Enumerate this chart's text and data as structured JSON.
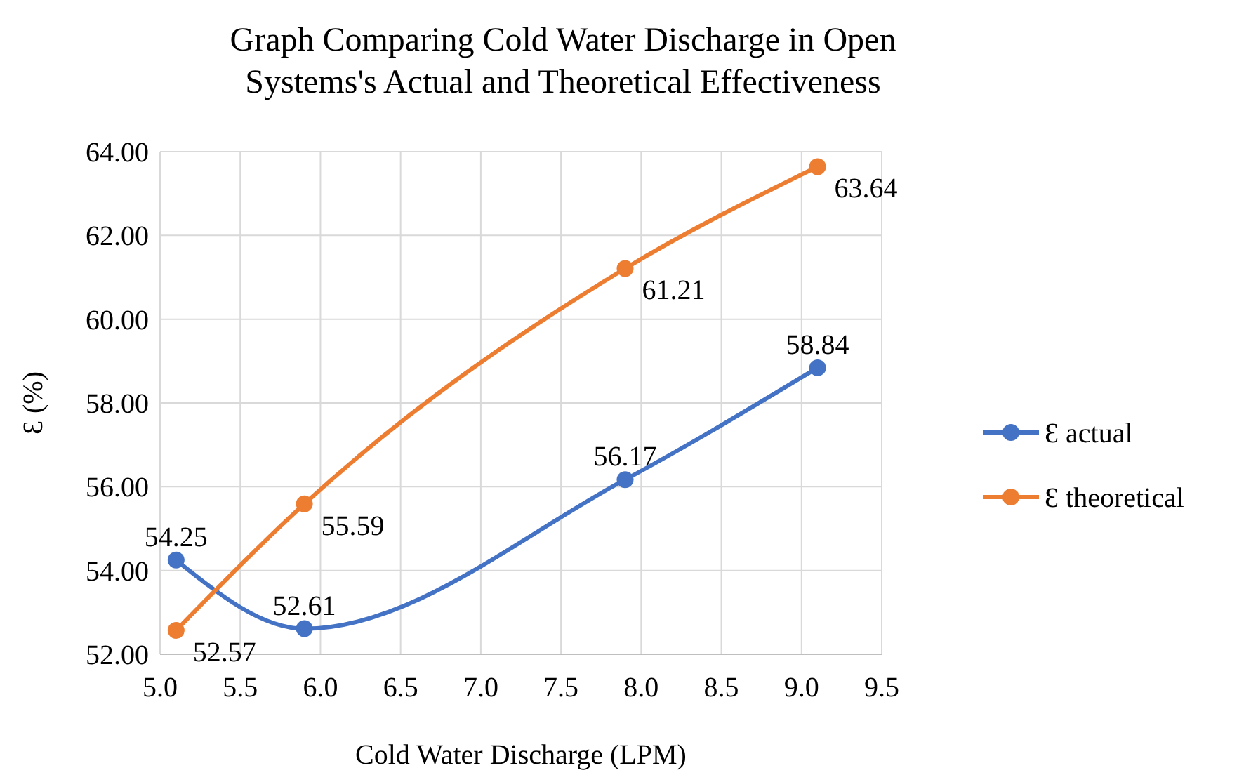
{
  "chart_data": {
    "type": "line",
    "title": "Graph Comparing Cold Water Discharge in Open Systems's Actual and Theoretical Effectiveness",
    "xlabel": "Cold Water Discharge (LPM)",
    "ylabel": "Ɛ (%)",
    "x": [
      5.1,
      5.9,
      7.9,
      9.1
    ],
    "series": [
      {
        "name": "Ɛ actual",
        "color": "#4472c4",
        "values": [
          54.25,
          52.61,
          56.17,
          58.84
        ]
      },
      {
        "name": "Ɛ theoretical",
        "color": "#ed7d31",
        "values": [
          52.57,
          55.59,
          61.21,
          63.64
        ]
      }
    ],
    "xlim": [
      5.0,
      9.5
    ],
    "xticks": [
      {
        "value": 5.0,
        "label": "5.0"
      },
      {
        "value": 5.5,
        "label": "5.5"
      },
      {
        "value": 6.0,
        "label": "6.0"
      },
      {
        "value": 6.5,
        "label": "6.5"
      },
      {
        "value": 7.0,
        "label": "7.0"
      },
      {
        "value": 7.5,
        "label": "7.5"
      },
      {
        "value": 8.0,
        "label": "8.0"
      },
      {
        "value": 8.5,
        "label": "8.5"
      },
      {
        "value": 9.0,
        "label": "9.0"
      },
      {
        "value": 9.5,
        "label": "9.5"
      }
    ],
    "ylim": [
      52,
      64
    ],
    "yticks": [
      {
        "value": 52,
        "label": "52.00"
      },
      {
        "value": 54,
        "label": "54.00"
      },
      {
        "value": 56,
        "label": "56.00"
      },
      {
        "value": 58,
        "label": "58.00"
      },
      {
        "value": 60,
        "label": "60.00"
      },
      {
        "value": 62,
        "label": "62.00"
      },
      {
        "value": 64,
        "label": "64.00"
      }
    ],
    "grid": true,
    "legend": "right",
    "marker": "circle",
    "line_style": "solid",
    "data_labels": true
  }
}
